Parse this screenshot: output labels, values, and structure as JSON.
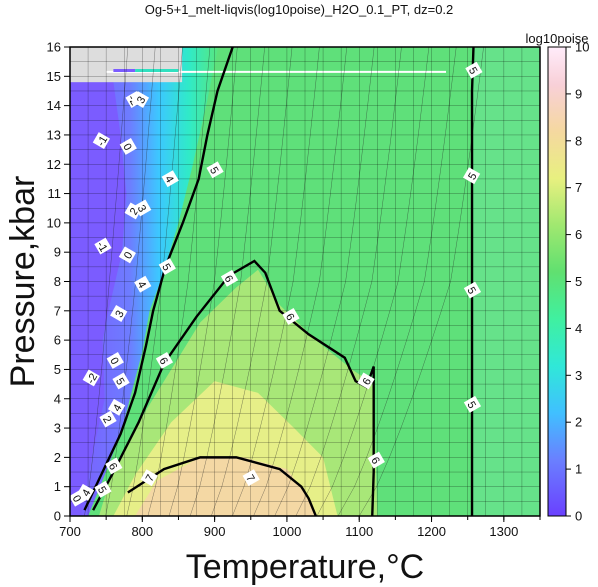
{
  "chart_data": {
    "type": "heatmap",
    "title": "Og-5+1_melt-liqvis(log10poise)_H2O_0.1_PT, dz=0.2",
    "xlabel": "Temperature,°C",
    "ylabel": "Pressure,kbar",
    "xlim": [
      700,
      1350
    ],
    "ylim": [
      0,
      16
    ],
    "xticks": [
      "700",
      "800",
      "900",
      "1000",
      "1100",
      "1200",
      "1300"
    ],
    "yticks": [
      "0",
      "1",
      "2",
      "3",
      "4",
      "5",
      "6",
      "7",
      "8",
      "9",
      "10",
      "11",
      "12",
      "13",
      "14",
      "15",
      "16"
    ],
    "grid": true,
    "colorbar": {
      "label": "log10poise",
      "range": [
        0,
        10
      ],
      "ticks": [
        "0",
        "1",
        "2",
        "3",
        "4",
        "5",
        "6",
        "7",
        "8",
        "9",
        "10"
      ]
    },
    "contour_interval": 0.2,
    "major_contours": [
      {
        "level": 5,
        "points": [
          [
            720,
            0.2
          ],
          [
            745,
            1.5
          ],
          [
            770,
            2.8
          ],
          [
            790,
            4.2
          ],
          [
            805,
            5.8
          ],
          [
            815,
            7.0
          ],
          [
            832,
            8.5
          ],
          [
            856,
            10.0
          ],
          [
            878,
            11.5
          ],
          [
            890,
            13.0
          ],
          [
            904,
            14.5
          ],
          [
            925,
            16
          ]
        ]
      },
      {
        "level": 6,
        "points": [
          [
            732,
            0.2
          ],
          [
            760,
            1.5
          ],
          [
            795,
            3.2
          ],
          [
            830,
            5.2
          ],
          [
            875,
            6.8
          ],
          [
            920,
            8.2
          ],
          [
            955,
            8.7
          ],
          [
            970,
            8.3
          ],
          [
            990,
            7.0
          ],
          [
            1030,
            6.2
          ],
          [
            1080,
            5.4
          ],
          [
            1095,
            4.6
          ],
          [
            1110,
            4.4
          ],
          [
            1120,
            5.1
          ],
          [
            1120,
            3.2
          ],
          [
            1120,
            1.5
          ],
          [
            1118,
            0
          ]
        ]
      },
      {
        "level": 7,
        "points": [
          [
            780,
            0.8
          ],
          [
            830,
            1.6
          ],
          [
            880,
            2.0
          ],
          [
            930,
            2.0
          ],
          [
            990,
            1.6
          ],
          [
            1020,
            1.0
          ],
          [
            1030,
            0.6
          ],
          [
            1040,
            0
          ]
        ]
      },
      {
        "level": 5,
        "points": [
          [
            1258,
            16
          ],
          [
            1256,
            14.5
          ],
          [
            1256,
            12
          ],
          [
            1256,
            9
          ],
          [
            1256,
            6
          ],
          [
            1256,
            3
          ],
          [
            1256,
            0
          ]
        ]
      }
    ],
    "contour_labels": [
      {
        "text": "-1",
        "x": 744,
        "y": 12.8
      },
      {
        "text": "0",
        "x": 780,
        "y": 12.6
      },
      {
        "text": "-2",
        "x": 788,
        "y": 14.2
      },
      {
        "text": "3",
        "x": 798,
        "y": 14.2
      },
      {
        "text": "4",
        "x": 838,
        "y": 11.5
      },
      {
        "text": "5",
        "x": 900,
        "y": 11.8
      },
      {
        "text": "2",
        "x": 788,
        "y": 10.4
      },
      {
        "text": "3",
        "x": 800,
        "y": 10.5
      },
      {
        "text": "-1",
        "x": 745,
        "y": 9.2
      },
      {
        "text": "0",
        "x": 780,
        "y": 8.9
      },
      {
        "text": "4",
        "x": 800,
        "y": 7.9
      },
      {
        "text": "5",
        "x": 834,
        "y": 8.5
      },
      {
        "text": "3",
        "x": 768,
        "y": 6.9
      },
      {
        "text": "6",
        "x": 920,
        "y": 8.1
      },
      {
        "text": "6",
        "x": 1005,
        "y": 6.8
      },
      {
        "text": "6",
        "x": 1110,
        "y": 4.6
      },
      {
        "text": "6",
        "x": 1123,
        "y": 1.9
      },
      {
        "text": "6",
        "x": 830,
        "y": 5.3
      },
      {
        "text": "-2",
        "x": 730,
        "y": 4.7
      },
      {
        "text": "0",
        "x": 762,
        "y": 5.3
      },
      {
        "text": "5",
        "x": 770,
        "y": 4.6
      },
      {
        "text": "4",
        "x": 765,
        "y": 3.7
      },
      {
        "text": "2",
        "x": 752,
        "y": 3.3
      },
      {
        "text": "6",
        "x": 760,
        "y": 1.7
      },
      {
        "text": "7",
        "x": 810,
        "y": 1.3
      },
      {
        "text": "7",
        "x": 950,
        "y": 1.3
      },
      {
        "text": "5",
        "x": 745,
        "y": 0.9
      },
      {
        "text": "4",
        "x": 722,
        "y": 0.8
      },
      {
        "text": "0",
        "x": 710,
        "y": 0.6
      },
      {
        "text": "5",
        "x": 1258,
        "y": 15.2
      },
      {
        "text": "5",
        "x": 1256,
        "y": 11.6
      },
      {
        "text": "5",
        "x": 1256,
        "y": 7.7
      },
      {
        "text": "5",
        "x": 1256,
        "y": 3.8
      }
    ],
    "colors": {
      "low": "#7b5cff",
      "mid_low": "#38e8d0",
      "mid": "#5fe07a",
      "mid_high": "#e8f07a",
      "high": "#f5c9b0",
      "top": "#ffe6f6",
      "nodata": "#dddddd"
    }
  }
}
